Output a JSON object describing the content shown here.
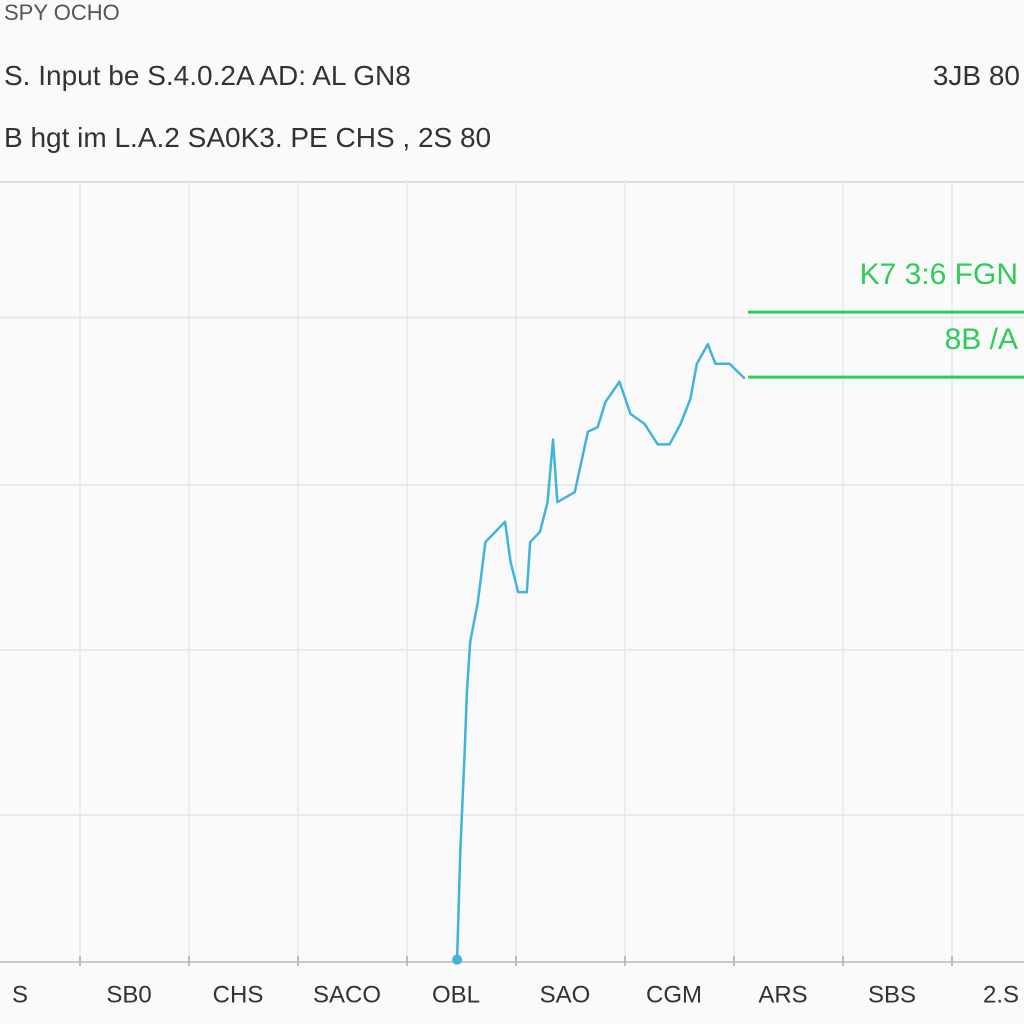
{
  "header": {
    "title": "SPY OCHO",
    "line1": "S. Input be S.4.0.2A AD: AL GN8",
    "line1_right": "3JB 80",
    "line2": "B hgt im L.A.2 SA0K3. PE CHS , 2S 80"
  },
  "chart_data": {
    "type": "line",
    "x": [
      4.01,
      4.04,
      4.08,
      4.1,
      4.13,
      4.2,
      4.27,
      4.36,
      4.45,
      4.5,
      4.57,
      4.65,
      4.68,
      4.77,
      4.84,
      4.89,
      4.93,
      5.09,
      5.21,
      5.3,
      5.37,
      5.5,
      5.6,
      5.73,
      5.85,
      5.96,
      6.06,
      6.15,
      6.21,
      6.31,
      6.38,
      6.51,
      6.65
    ],
    "series": [
      {
        "color": "#3fb4dc",
        "values": [
          0.3,
          14.3,
          27.0,
          34.5,
          40.9,
          46.0,
          53.7,
          55.0,
          56.3,
          51.2,
          47.3,
          47.3,
          53.7,
          55.0,
          58.8,
          66.8,
          58.8,
          60.1,
          67.8,
          68.4,
          71.6,
          74.2,
          70.1,
          68.8,
          66.2,
          66.2,
          68.8,
          72.0,
          76.5,
          79.0,
          76.5,
          76.5,
          74.6
        ]
      }
    ],
    "levels": [
      {
        "value": 83.1,
        "label": "K7 3:6 FGN"
      },
      {
        "value": 74.8,
        "label": "8B /A"
      }
    ],
    "level_color": "#2ecc5a",
    "xlim": [
      0,
      9
    ],
    "xticks": [
      {
        "value": 0,
        "label": "S"
      },
      {
        "value": 1,
        "label": "SB0"
      },
      {
        "value": 2,
        "label": "CHS"
      },
      {
        "value": 3,
        "label": "SACO"
      },
      {
        "value": 4,
        "label": "OBL"
      },
      {
        "value": 5,
        "label": "SAO"
      },
      {
        "value": 6,
        "label": "CGM"
      },
      {
        "value": 7,
        "label": "ARS"
      },
      {
        "value": 8,
        "label": "SBS"
      },
      {
        "value": 9,
        "label": "2.S"
      }
    ],
    "ylim": [
      0,
      100
    ],
    "yticks": [
      18.8,
      39.9,
      61.0,
      82.4
    ],
    "grid": true
  }
}
